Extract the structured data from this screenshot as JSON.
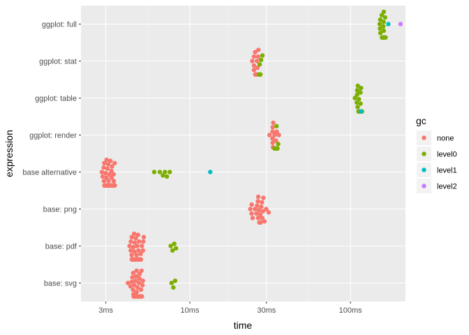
{
  "chart_data": {
    "type": "scatter",
    "subtype": "beeswarm",
    "title": "",
    "xlabel": "time",
    "ylabel": "expression",
    "x_scale": "log10",
    "x_unit": "ms",
    "xlim": [
      2.1,
      220
    ],
    "x_ticks": [
      {
        "value": 3,
        "label": "3ms"
      },
      {
        "value": 10,
        "label": "10ms"
      },
      {
        "value": 30,
        "label": "30ms"
      },
      {
        "value": 100,
        "label": "100ms"
      }
    ],
    "x_minor_ticks": [
      5.48,
      17.3,
      54.8
    ],
    "categories": [
      "base: svg",
      "base: pdf",
      "base: png",
      "base alternative",
      "ggplot: render",
      "ggplot: table",
      "ggplot: stat",
      "ggplot: full"
    ],
    "grid": true,
    "legend": {
      "title": "gc",
      "position": "right",
      "entries": [
        {
          "name": "none",
          "color": "#F8766D"
        },
        {
          "name": "level0",
          "color": "#7CAE00"
        },
        {
          "name": "level1",
          "color": "#00BFC4"
        },
        {
          "name": "level2",
          "color": "#C77CFF"
        }
      ]
    },
    "groups": [
      {
        "category": "base: svg",
        "gc": "none",
        "count": 60,
        "min": 4.1,
        "max": 5.3
      },
      {
        "category": "base: svg",
        "gc": "level0",
        "count": 3,
        "values": [
          7.7,
          7.9,
          8.1
        ]
      },
      {
        "category": "base: pdf",
        "gc": "none",
        "count": 60,
        "min": 4.1,
        "max": 5.3
      },
      {
        "category": "base: pdf",
        "gc": "level0",
        "count": 4,
        "values": [
          7.6,
          7.8,
          8.0,
          8.2
        ]
      },
      {
        "category": "base: png",
        "gc": "none",
        "count": 24,
        "min": 22.5,
        "max": 33
      },
      {
        "category": "base alternative",
        "gc": "none",
        "count": 90,
        "min": 2.8,
        "max": 3.5
      },
      {
        "category": "base alternative",
        "gc": "level0",
        "count": 6,
        "values": [
          6.0,
          6.5,
          6.8,
          7.0,
          7.2,
          7.5
        ]
      },
      {
        "category": "base alternative",
        "gc": "level1",
        "count": 1,
        "values": [
          13.4
        ]
      },
      {
        "category": "ggplot: render",
        "gc": "none",
        "count": 14,
        "min": 30.5,
        "max": 36.5
      },
      {
        "category": "ggplot: render",
        "gc": "level0",
        "count": 8,
        "min": 33,
        "max": 36
      },
      {
        "category": "ggplot: table",
        "gc": "level0",
        "count": 22,
        "min": 105,
        "max": 120
      },
      {
        "category": "ggplot: table",
        "gc": "level1",
        "count": 1,
        "values": [
          116
        ]
      },
      {
        "category": "ggplot: stat",
        "gc": "none",
        "count": 12,
        "min": 24,
        "max": 27
      },
      {
        "category": "ggplot: stat",
        "gc": "level0",
        "count": 10,
        "min": 26,
        "max": 29
      },
      {
        "category": "ggplot: full",
        "gc": "level0",
        "count": 24,
        "min": 150,
        "max": 168
      },
      {
        "category": "ggplot: full",
        "gc": "level1",
        "count": 1,
        "values": [
          172
        ]
      },
      {
        "category": "ggplot: full",
        "gc": "level2",
        "count": 1,
        "values": [
          205
        ]
      }
    ]
  },
  "colors": {
    "panel_bg": "#EBEBEB",
    "grid_major": "#FFFFFF",
    "none": "#F8766D",
    "level0": "#7CAE00",
    "level1": "#00BFC4",
    "level2": "#C77CFF"
  }
}
